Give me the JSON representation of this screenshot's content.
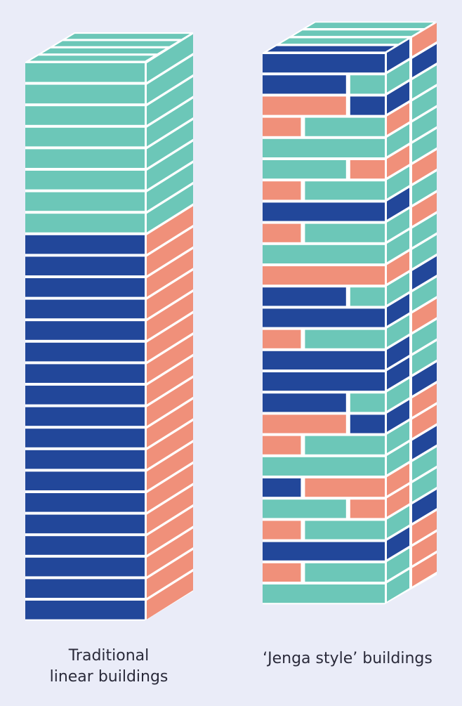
{
  "captions": {
    "left": [
      "Traditional",
      "linear buildings"
    ],
    "right": "‘Jenga style’ buildings"
  }
}
